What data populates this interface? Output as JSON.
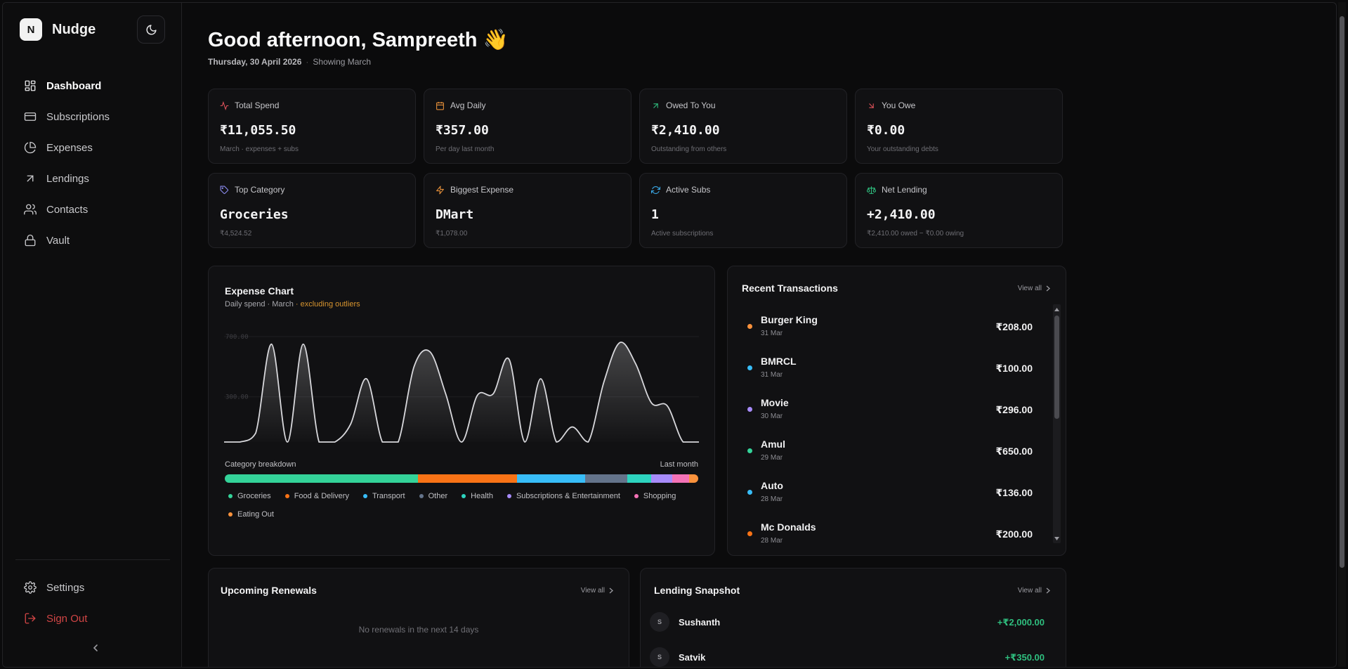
{
  "brand": {
    "logo_letter": "N",
    "name": "Nudge"
  },
  "nav": {
    "items": [
      {
        "label": "Dashboard",
        "icon": "dashboard-icon"
      },
      {
        "label": "Subscriptions",
        "icon": "card-icon"
      },
      {
        "label": "Expenses",
        "icon": "pie-icon"
      },
      {
        "label": "Lendings",
        "icon": "arrow-up-right-icon"
      },
      {
        "label": "Contacts",
        "icon": "users-icon"
      },
      {
        "label": "Vault",
        "icon": "lock-icon"
      }
    ],
    "settings": "Settings",
    "sign_out": "Sign Out"
  },
  "header": {
    "greeting": "Good afternoon, Sampreeth 👋",
    "date": "Thursday, 30 April 2026",
    "sep": "·",
    "showing": "Showing March"
  },
  "stats": [
    {
      "label": "Total Spend",
      "value": "₹11,055.50",
      "sub": "March · expenses + subs",
      "color": "#e0525a"
    },
    {
      "label": "Avg Daily",
      "value": "₹357.00",
      "sub": "Per day last month",
      "color": "#e8913a"
    },
    {
      "label": "Owed To You",
      "value": "₹2,410.00",
      "sub": "Outstanding from others",
      "color": "#2fbf7f"
    },
    {
      "label": "You Owe",
      "value": "₹0.00",
      "sub": "Your outstanding debts",
      "color": "#e0525a"
    },
    {
      "label": "Top Category",
      "value": "Groceries",
      "sub": "₹4,524.52",
      "color": "#8b8bf0"
    },
    {
      "label": "Biggest Expense",
      "value": "DMart",
      "sub": "₹1,078.00",
      "color": "#e8913a"
    },
    {
      "label": "Active Subs",
      "value": "1",
      "sub": "Active subscriptions",
      "color": "#3aa9e8"
    },
    {
      "label": "Net Lending",
      "value": "+2,410.00",
      "sub": "₹2,410.00 owed − ₹0.00 owing",
      "color": "#2fbf7f"
    }
  ],
  "expense_chart": {
    "title": "Expense Chart",
    "subtitle": "Daily spend · March",
    "outlier_note": "· excluding outliers",
    "category_heading": "Category breakdown",
    "period": "Last month"
  },
  "chart_data": {
    "type": "area",
    "title": "Expense Chart",
    "x": [
      1,
      2,
      3,
      4,
      5,
      6,
      7,
      8,
      9,
      10,
      11,
      12,
      13,
      14,
      15,
      16,
      17,
      18,
      19,
      20,
      21,
      22,
      23,
      24,
      25,
      26,
      27,
      28,
      29,
      30,
      31
    ],
    "values": [
      0,
      0,
      60,
      650,
      0,
      650,
      0,
      0,
      120,
      420,
      0,
      0,
      500,
      600,
      320,
      0,
      310,
      320,
      550,
      0,
      420,
      0,
      100,
      0,
      400,
      660,
      520,
      260,
      240,
      0,
      0
    ],
    "ylim": [
      0,
      700
    ],
    "y_ticks": [
      "700.00",
      "300.00"
    ],
    "categories_breakdown": [
      {
        "name": "Groceries",
        "share": 0.41,
        "color": "#34d399"
      },
      {
        "name": "Food & Delivery",
        "share": 0.21,
        "color": "#f97316"
      },
      {
        "name": "Transport",
        "share": 0.145,
        "color": "#38bdf8"
      },
      {
        "name": "Other",
        "share": 0.09,
        "color": "#64748b"
      },
      {
        "name": "Health",
        "share": 0.05,
        "color": "#2dd4bf"
      },
      {
        "name": "Subscriptions & Entertainment",
        "share": 0.045,
        "color": "#a78bfa"
      },
      {
        "name": "Shopping",
        "share": 0.035,
        "color": "#f472b6"
      },
      {
        "name": "Eating Out",
        "share": 0.02,
        "color": "#fb923c"
      }
    ]
  },
  "transactions": {
    "title": "Recent Transactions",
    "view_all": "View all",
    "items": [
      {
        "name": "Burger King",
        "date": "31 Mar",
        "amount": "₹208.00",
        "color": "#fb923c"
      },
      {
        "name": "BMRCL",
        "date": "31 Mar",
        "amount": "₹100.00",
        "color": "#38bdf8"
      },
      {
        "name": "Movie",
        "date": "30 Mar",
        "amount": "₹296.00",
        "color": "#a78bfa"
      },
      {
        "name": "Amul",
        "date": "29 Mar",
        "amount": "₹650.00",
        "color": "#34d399"
      },
      {
        "name": "Auto",
        "date": "28 Mar",
        "amount": "₹136.00",
        "color": "#38bdf8"
      },
      {
        "name": "Mc Donalds",
        "date": "28 Mar",
        "amount": "₹200.00",
        "color": "#f97316"
      }
    ]
  },
  "renewals": {
    "title": "Upcoming Renewals",
    "view_all": "View all",
    "empty": "No renewals in the next 14 days"
  },
  "lending": {
    "title": "Lending Snapshot",
    "view_all": "View all",
    "items": [
      {
        "initial": "S",
        "name": "Sushanth",
        "amount": "+₹2,000.00"
      },
      {
        "initial": "S",
        "name": "Satvik",
        "amount": "+₹350.00"
      }
    ]
  }
}
